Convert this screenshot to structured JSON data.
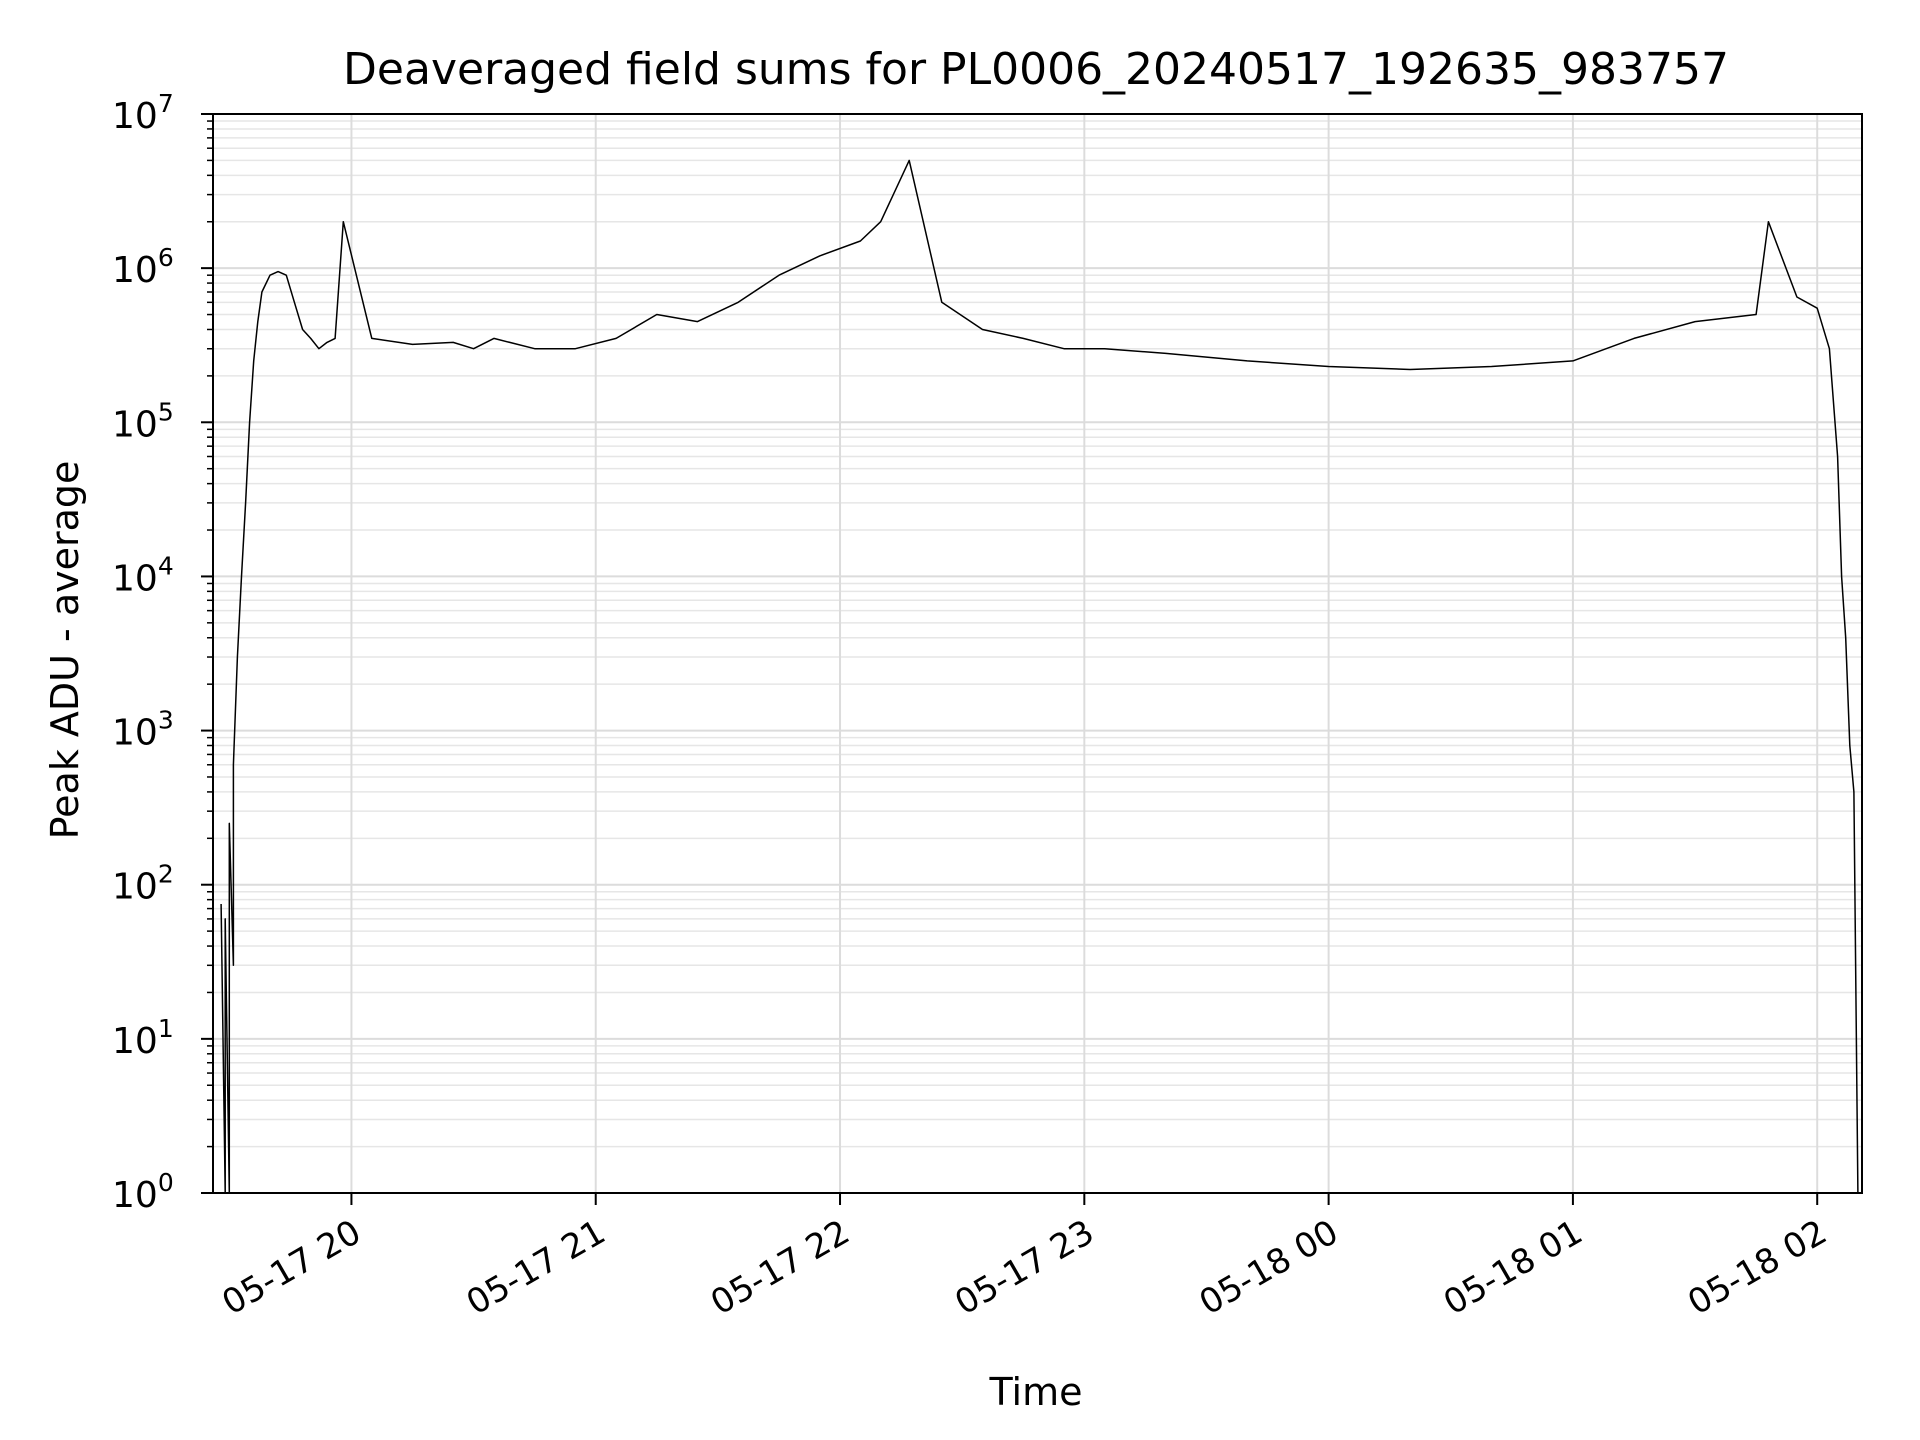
{
  "chart_data": {
    "type": "line",
    "title": "Deaveraged field sums for PL0006_20240517_192635_983757",
    "xlabel": "Time",
    "ylabel": "Peak ADU - average",
    "yscale": "log",
    "ylim": [
      1,
      10000000
    ],
    "xlim": [
      "2024-05-17 19:26",
      "2024-05-18 02:11"
    ],
    "grid": true,
    "line_color": "#000000",
    "x_ticks": [
      {
        "value": "2024-05-17 20:00",
        "label": "05-17 20"
      },
      {
        "value": "2024-05-17 21:00",
        "label": "05-17 21"
      },
      {
        "value": "2024-05-17 22:00",
        "label": "05-17 22"
      },
      {
        "value": "2024-05-17 23:00",
        "label": "05-17 23"
      },
      {
        "value": "2024-05-18 00:00",
        "label": "05-18 00"
      },
      {
        "value": "2024-05-18 01:00",
        "label": "05-18 01"
      },
      {
        "value": "2024-05-18 02:00",
        "label": "05-18 02"
      }
    ],
    "y_ticks": [
      {
        "value": 1,
        "base": "10",
        "exp": "0"
      },
      {
        "value": 10,
        "base": "10",
        "exp": "1"
      },
      {
        "value": 100,
        "base": "10",
        "exp": "2"
      },
      {
        "value": 1000,
        "base": "10",
        "exp": "3"
      },
      {
        "value": 10000,
        "base": "10",
        "exp": "4"
      },
      {
        "value": 100000,
        "base": "10",
        "exp": "5"
      },
      {
        "value": 1000000,
        "base": "10",
        "exp": "6"
      },
      {
        "value": 10000000,
        "base": "10",
        "exp": "7"
      }
    ],
    "series": [
      {
        "x": [
          "2024-05-17 19:28",
          "2024-05-17 19:29",
          "2024-05-17 19:29",
          "2024-05-17 19:30",
          "2024-05-17 19:30",
          "2024-05-17 19:31",
          "2024-05-17 19:31",
          "2024-05-17 19:32",
          "2024-05-17 19:33",
          "2024-05-17 19:34",
          "2024-05-17 19:35",
          "2024-05-17 19:36",
          "2024-05-17 19:37",
          "2024-05-17 19:38",
          "2024-05-17 19:40",
          "2024-05-17 19:42",
          "2024-05-17 19:44",
          "2024-05-17 19:46",
          "2024-05-17 19:48",
          "2024-05-17 19:50",
          "2024-05-17 19:52",
          "2024-05-17 19:54",
          "2024-05-17 19:56",
          "2024-05-17 19:58",
          "2024-05-17 20:05",
          "2024-05-17 20:15",
          "2024-05-17 20:25",
          "2024-05-17 20:30",
          "2024-05-17 20:35",
          "2024-05-17 20:45",
          "2024-05-17 20:55",
          "2024-05-17 21:05",
          "2024-05-17 21:15",
          "2024-05-17 21:25",
          "2024-05-17 21:35",
          "2024-05-17 21:45",
          "2024-05-17 21:55",
          "2024-05-17 22:05",
          "2024-05-17 22:10",
          "2024-05-17 22:17",
          "2024-05-17 22:25",
          "2024-05-17 22:35",
          "2024-05-17 22:45",
          "2024-05-17 22:55",
          "2024-05-17 23:05",
          "2024-05-17 23:20",
          "2024-05-17 23:40",
          "2024-05-18 00:00",
          "2024-05-18 00:20",
          "2024-05-18 00:40",
          "2024-05-18 01:00",
          "2024-05-18 01:15",
          "2024-05-18 01:30",
          "2024-05-18 01:45",
          "2024-05-18 01:48",
          "2024-05-18 01:55",
          "2024-05-18 02:00",
          "2024-05-18 02:03",
          "2024-05-18 02:05",
          "2024-05-18 02:06",
          "2024-05-18 02:07",
          "2024-05-18 02:08",
          "2024-05-18 02:09",
          "2024-05-18 02:10",
          "2024-05-18 02:10"
        ],
        "y": [
          75,
          1,
          60,
          1,
          250,
          30,
          600,
          3000,
          10000,
          30000,
          100000,
          250000,
          450000,
          700000,
          900000,
          950000,
          900000,
          600000,
          400000,
          350000,
          300000,
          330000,
          350000,
          2000000,
          350000,
          320000,
          330000,
          300000,
          350000,
          300000,
          300000,
          350000,
          500000,
          450000,
          600000,
          900000,
          1200000,
          1500000,
          2000000,
          5000000,
          600000,
          400000,
          350000,
          300000,
          300000,
          280000,
          250000,
          230000,
          220000,
          230000,
          250000,
          350000,
          450000,
          500000,
          2000000,
          650000,
          550000,
          300000,
          60000,
          10000,
          4000,
          800,
          400,
          1,
          1
        ]
      }
    ]
  }
}
